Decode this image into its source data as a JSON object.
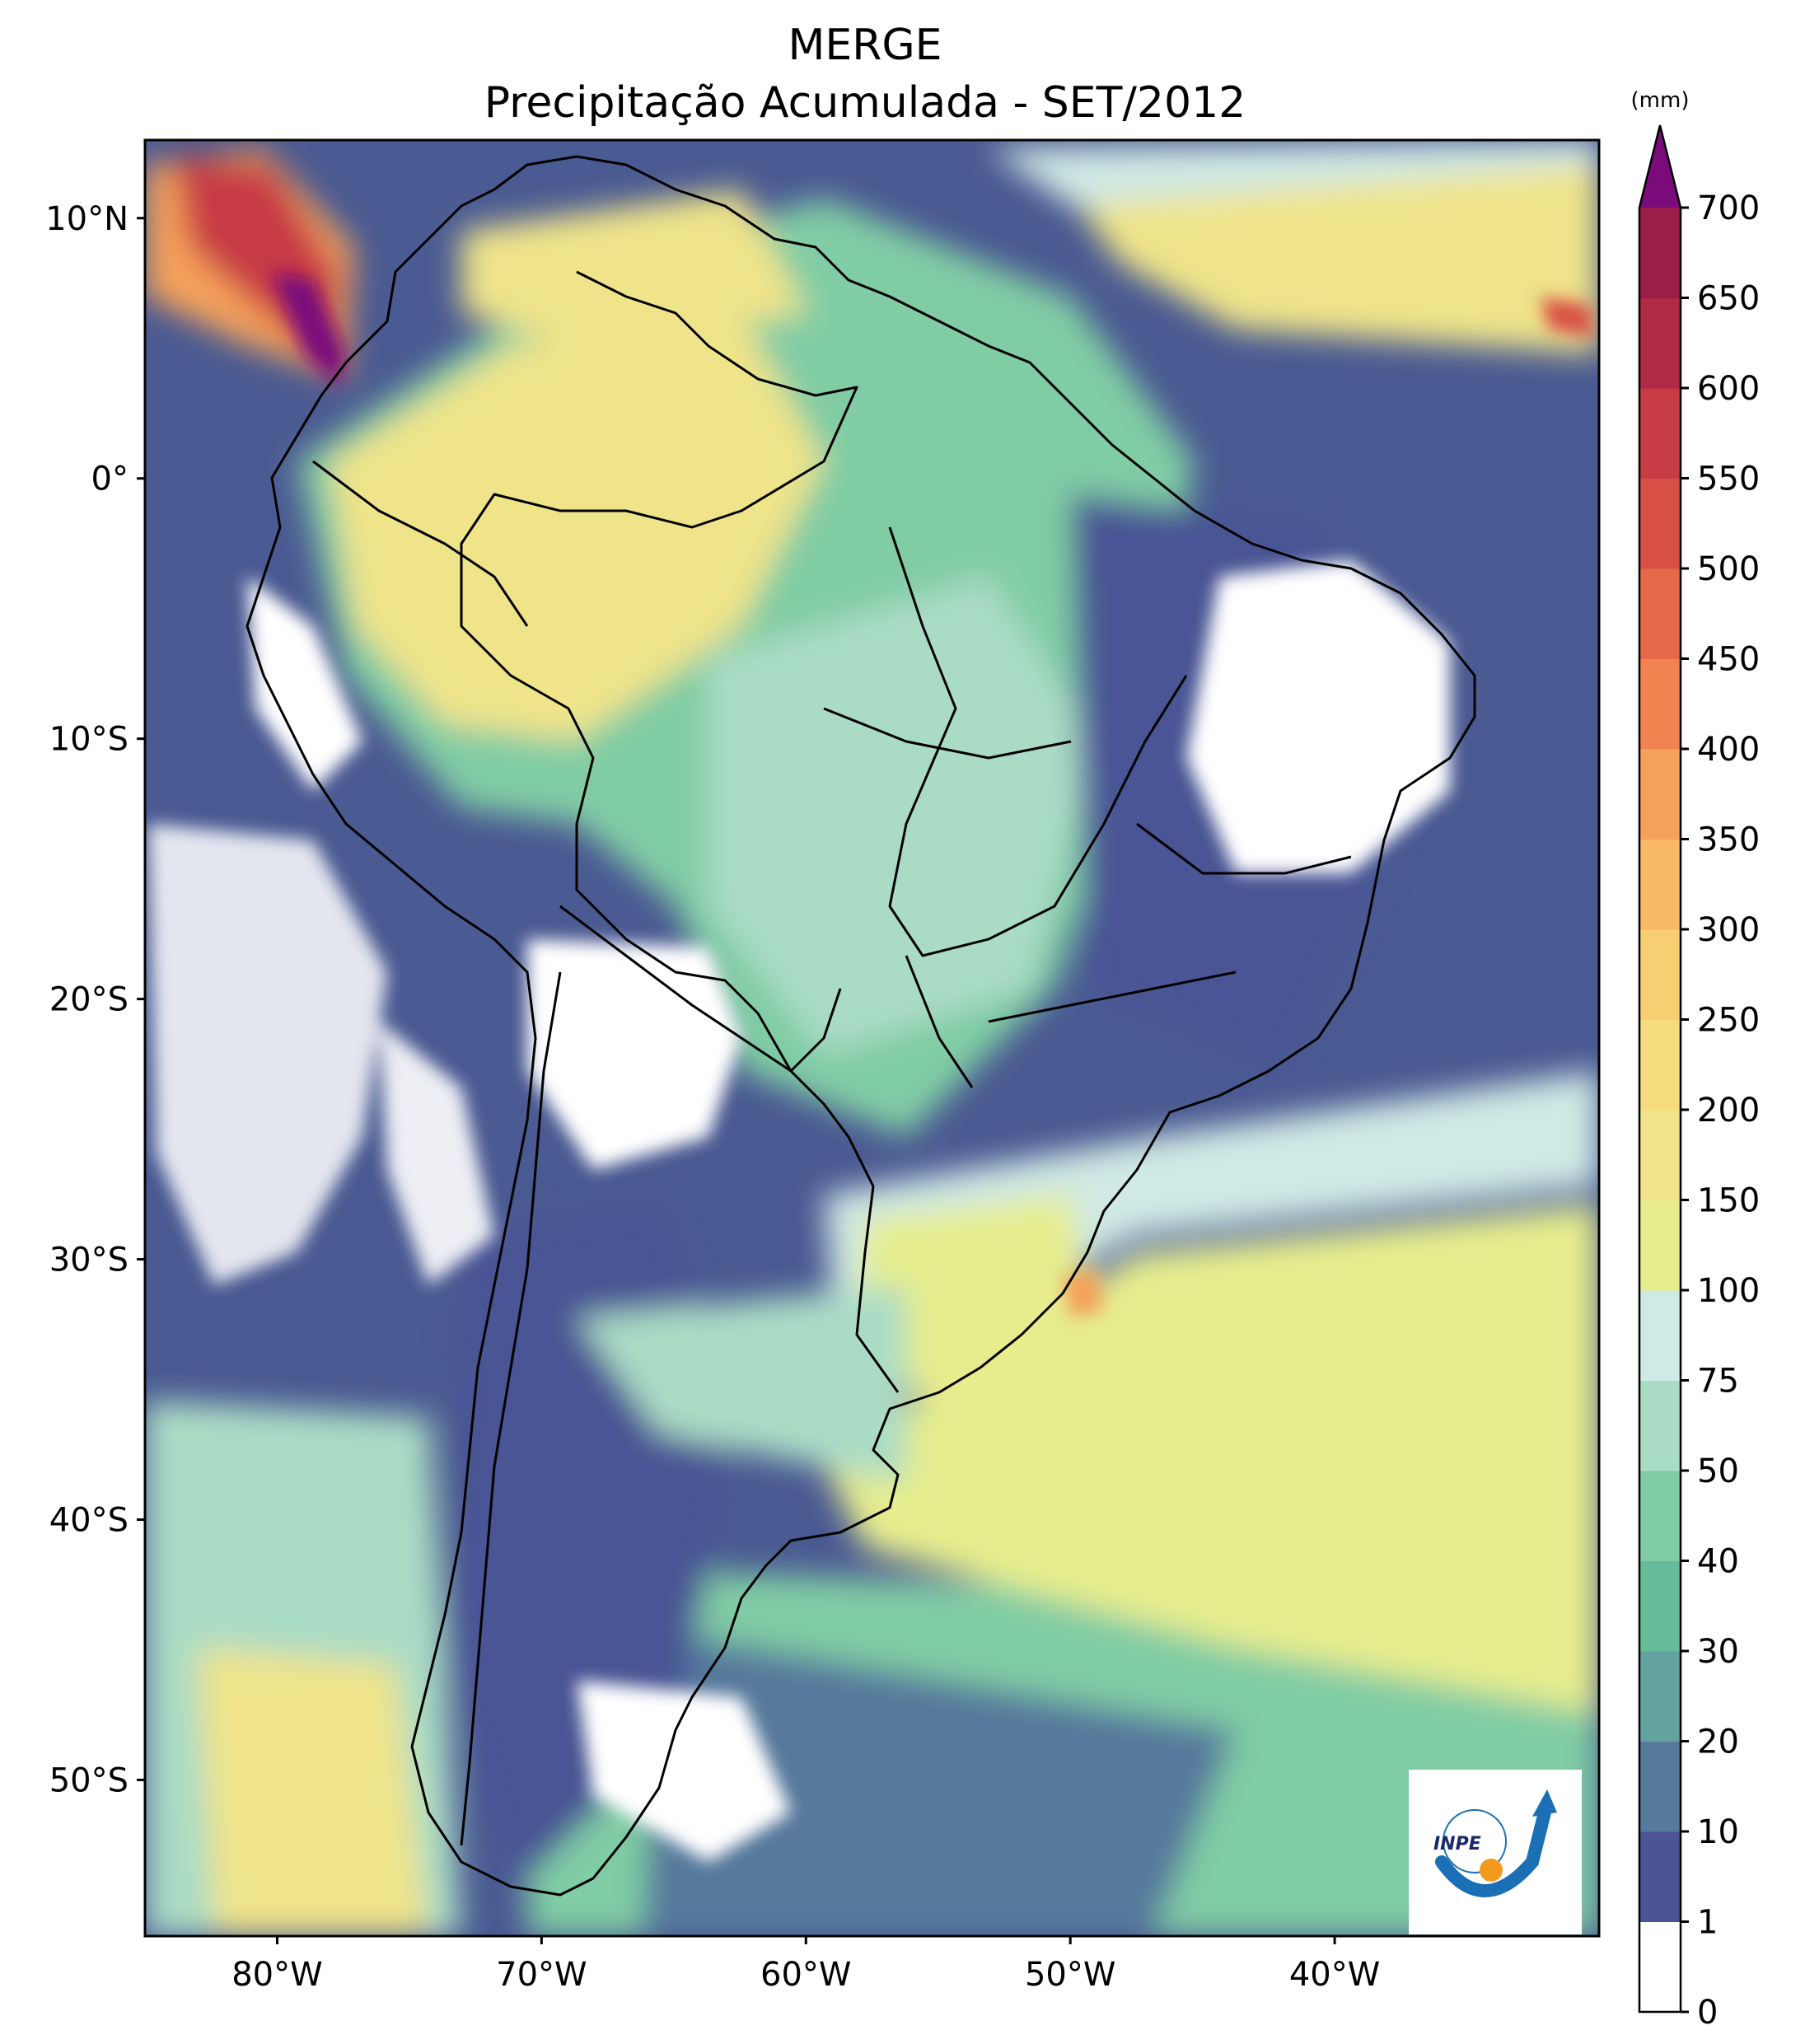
{
  "title": {
    "line1": "MERGE",
    "line2": "Precipitação Acumulada - SET/2012"
  },
  "map": {
    "lon_range": [
      -85,
      -30
    ],
    "lat_range": [
      -56,
      13
    ],
    "lon_ticks": [
      {
        "value": -80,
        "label": "80°W"
      },
      {
        "value": -70,
        "label": "70°W"
      },
      {
        "value": -60,
        "label": "60°W"
      },
      {
        "value": -50,
        "label": "50°W"
      },
      {
        "value": -40,
        "label": "40°W"
      }
    ],
    "lat_ticks": [
      {
        "value": 10,
        "label": "10°N"
      },
      {
        "value": 0,
        "label": "0°"
      },
      {
        "value": -10,
        "label": "10°S"
      },
      {
        "value": -20,
        "label": "20°S"
      },
      {
        "value": -30,
        "label": "30°S"
      },
      {
        "value": -40,
        "label": "40°S"
      },
      {
        "value": -50,
        "label": "50°S"
      }
    ],
    "background_color": "#4a5a92"
  },
  "colorbar": {
    "unit": "(mm)",
    "levels": [
      {
        "label": "0",
        "color": "#ffffff"
      },
      {
        "label": "1",
        "color": "#4a5494"
      },
      {
        "label": "10",
        "color": "#57799c"
      },
      {
        "label": "20",
        "color": "#63a29e"
      },
      {
        "label": "30",
        "color": "#66bb98"
      },
      {
        "label": "40",
        "color": "#80cca4"
      },
      {
        "label": "50",
        "color": "#aadcc5"
      },
      {
        "label": "75",
        "color": "#cfe9e4"
      },
      {
        "label": "100",
        "color": "#e6ed8d"
      },
      {
        "label": "150",
        "color": "#efe48a"
      },
      {
        "label": "200",
        "color": "#f6dc7e"
      },
      {
        "label": "250",
        "color": "#f8ce72"
      },
      {
        "label": "300",
        "color": "#f8b865"
      },
      {
        "label": "350",
        "color": "#f5a15a"
      },
      {
        "label": "400",
        "color": "#f08350"
      },
      {
        "label": "450",
        "color": "#e66a4a"
      },
      {
        "label": "500",
        "color": "#d85044"
      },
      {
        "label": "550",
        "color": "#c73b44"
      },
      {
        "label": "600",
        "color": "#b12a45"
      },
      {
        "label": "650",
        "color": "#9a1f48"
      },
      {
        "label": "700",
        "color": "#7b0b7b"
      }
    ],
    "extend_color": "#7b0b7b"
  },
  "logo": {
    "text": "INPE"
  }
}
